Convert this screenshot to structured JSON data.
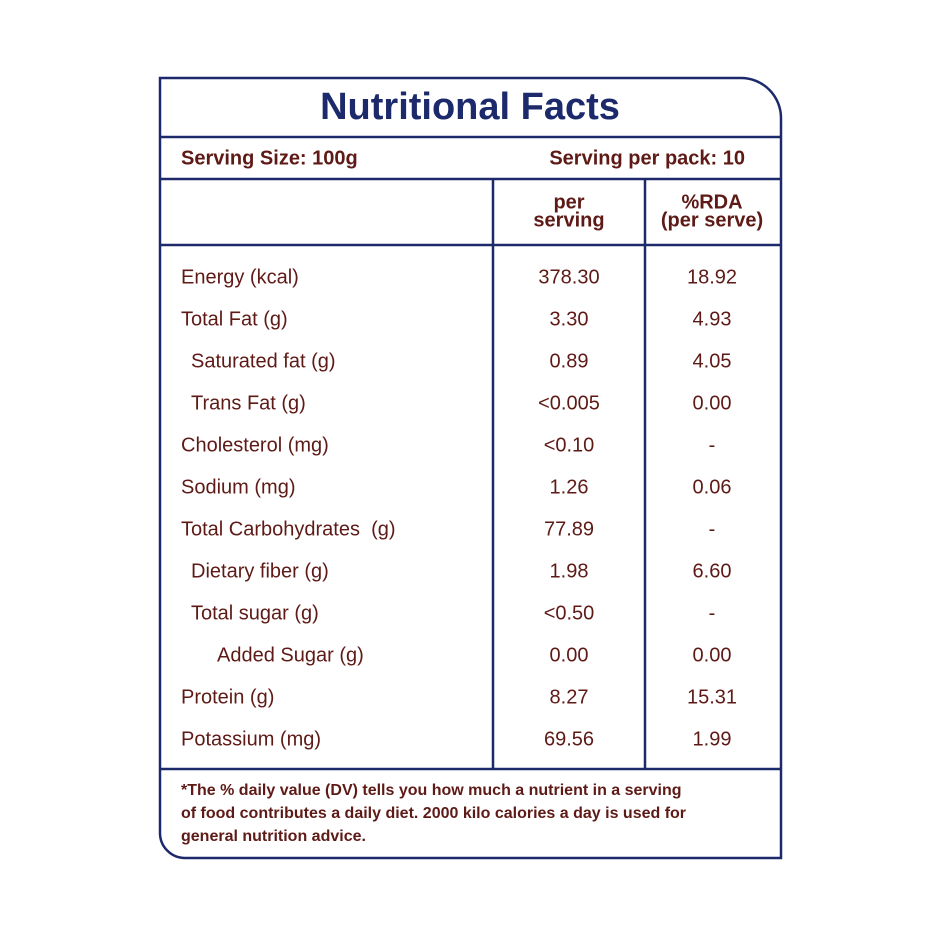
{
  "title": "Nutritional Facts",
  "serving_size": "Serving Size: 100g",
  "serving_per_pack": "Serving per pack: 10",
  "table": {
    "header": [
      [
        "per",
        "serving"
      ],
      [
        "%RDA",
        "(per serve)"
      ]
    ],
    "rows": [
      [
        "Energy (kcal)",
        "378.30",
        "18.92"
      ],
      [
        "Total Fat (g)",
        "3.30",
        "4.93"
      ],
      [
        "Saturated fat (g)",
        "0.89",
        "4.05"
      ],
      [
        "Trans Fat (g)",
        "<0.005",
        "0.00"
      ],
      [
        "Cholesterol (mg)",
        "<0.10",
        "-"
      ],
      [
        "Sodium (mg)",
        "1.26",
        "0.06"
      ],
      [
        "Total Carbohydrates  (g)",
        "77.89",
        "-"
      ],
      [
        "Dietary fiber (g)",
        "1.98",
        "6.60"
      ],
      [
        "Total sugar (g)",
        "<0.50",
        "-"
      ],
      [
        "Added Sugar (g)",
        "0.00",
        "0.00"
      ],
      [
        "Protein (g)",
        "8.27",
        "15.31"
      ],
      [
        "Potassium (mg)",
        "69.56",
        "1.99"
      ]
    ]
  },
  "footnote": [
    "*The % daily value (DV) tells you how much a nutrient in a serving",
    "of food contributes a daily diet. 2000 kilo calories a day is used for",
    "general nutrition advice."
  ]
}
